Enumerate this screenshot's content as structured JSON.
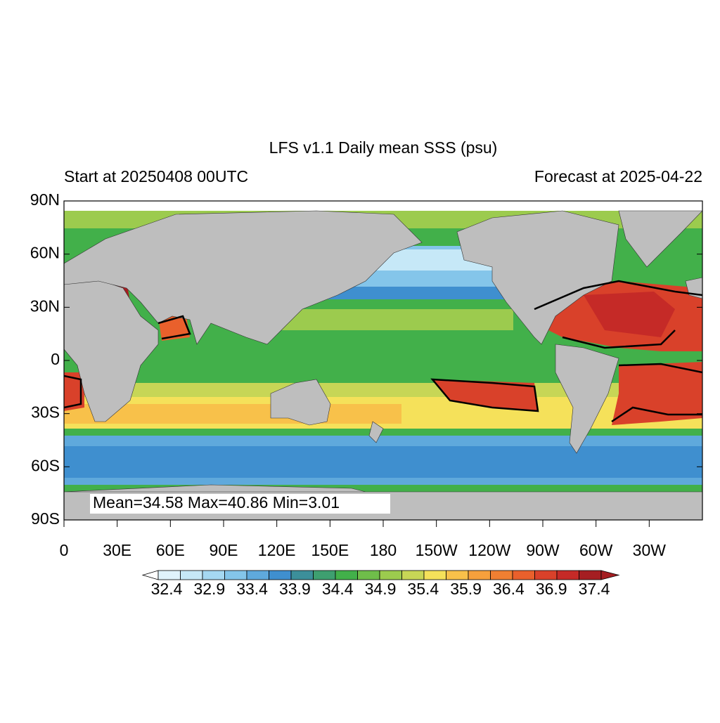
{
  "title": "LFS v1.1 Daily mean SSS (psu)",
  "subtitle_left": "Start at 20250408 00UTC",
  "subtitle_right": "Forecast at 2025-04-22",
  "map": {
    "latticks": [
      {
        "value": 90,
        "label": "90N"
      },
      {
        "value": 60,
        "label": "60N"
      },
      {
        "value": 30,
        "label": "30N"
      },
      0,
      {
        "value": -30,
        "label": "30S"
      },
      {
        "value": -60,
        "label": "60S"
      },
      {
        "value": -90,
        "label": "90S"
      }
    ],
    "lonticks": [
      0,
      {
        "value": 30,
        "label": "30E"
      },
      {
        "value": 60,
        "label": "60E"
      },
      {
        "value": 90,
        "label": "90E"
      },
      {
        "value": 120,
        "label": "120E"
      },
      {
        "value": 150,
        "label": "150E"
      },
      180,
      {
        "value": 210,
        "label": "150W"
      },
      {
        "value": 240,
        "label": "120W"
      },
      {
        "value": 270,
        "label": "90W"
      },
      {
        "value": 300,
        "label": "60W"
      },
      {
        "value": 330,
        "label": "30W"
      }
    ],
    "annotation": "Mean=34.58  Max=40.86  Min=3.01"
  },
  "colorbar": {
    "levels": [
      32.4,
      32.9,
      33.4,
      33.9,
      34.4,
      34.9,
      35.4,
      35.9,
      36.4,
      36.9,
      37.4
    ],
    "colors": [
      "#ffffff",
      "#e0f3fb",
      "#c6e8f7",
      "#a5d8f2",
      "#84c5ea",
      "#5fa9dc",
      "#3f8fcf",
      "#3c8f9a",
      "#3e9f70",
      "#42b04a",
      "#6fbe4a",
      "#9ccb4e",
      "#c7d656",
      "#f5e15a",
      "#f8c14a",
      "#f6a03c",
      "#f07f32",
      "#e9602c",
      "#d9412a",
      "#c52a27",
      "#a51e22",
      "#a51e22"
    ]
  }
}
